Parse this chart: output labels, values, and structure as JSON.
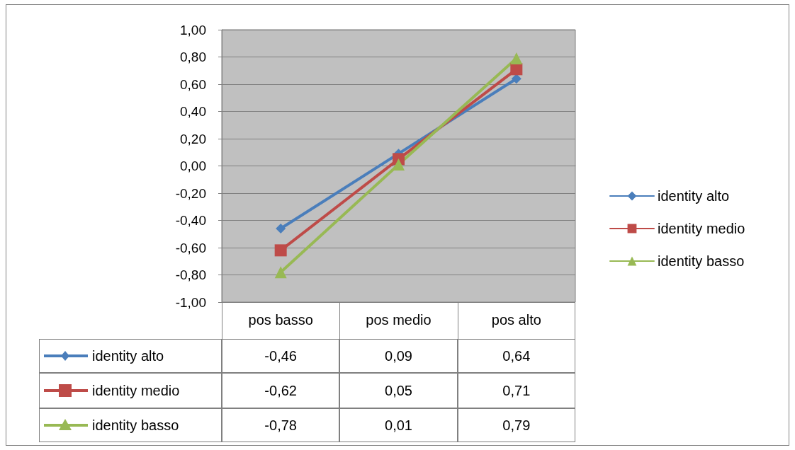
{
  "chart_data": {
    "type": "line",
    "categories": [
      "pos basso",
      "pos medio",
      "pos alto"
    ],
    "series": [
      {
        "name": "identity alto",
        "color": "#4a7ebb",
        "marker": "diamond",
        "values": [
          -0.46,
          0.09,
          0.64
        ],
        "value_labels": [
          "-0,46",
          "0,09",
          "0,64"
        ]
      },
      {
        "name": "identity medio",
        "color": "#be4b48",
        "marker": "square",
        "values": [
          -0.62,
          0.05,
          0.71
        ],
        "value_labels": [
          "-0,62",
          "0,05",
          "0,71"
        ]
      },
      {
        "name": "identity basso",
        "color": "#98b954",
        "marker": "triangle",
        "values": [
          -0.78,
          0.01,
          0.79
        ],
        "value_labels": [
          "-0,78",
          "0,01",
          "0,79"
        ]
      }
    ],
    "ylim": [
      -1,
      1
    ],
    "yticks": [
      {
        "value": -1,
        "label": "-1,00"
      },
      {
        "value": -0.8,
        "label": "-0,80"
      },
      {
        "value": -0.6,
        "label": "-0,60"
      },
      {
        "value": -0.4,
        "label": "-0,40"
      },
      {
        "value": -0.2,
        "label": "-0,20"
      },
      {
        "value": 0,
        "label": "0,00"
      },
      {
        "value": 0.2,
        "label": "0,20"
      },
      {
        "value": 0.4,
        "label": "0,40"
      },
      {
        "value": 0.6,
        "label": "0,60"
      },
      {
        "value": 0.8,
        "label": "0,80"
      },
      {
        "value": 1,
        "label": "1,00"
      }
    ],
    "grid": "y",
    "legend": "right",
    "line_style": "solid"
  }
}
